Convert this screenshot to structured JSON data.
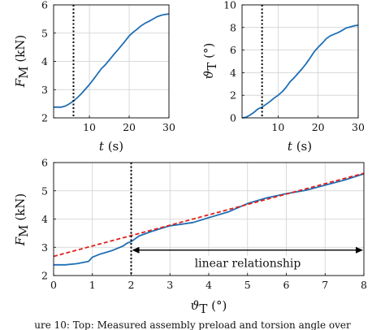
{
  "colors": {
    "series": "#1f6fb5",
    "fit": "#e0201b",
    "grid": "#cfcfcf",
    "axis": "#000000"
  },
  "chart_data": [
    {
      "id": "panel-a",
      "type": "line",
      "xlim": [
        1,
        30
      ],
      "ylim": [
        2,
        6
      ],
      "xticks": [
        10,
        20,
        30
      ],
      "yticks": [
        2,
        3,
        4,
        5,
        6
      ],
      "grid": true,
      "xlabel_var": "t",
      "xlabel_unit": "(s)",
      "ylabel_var": "F",
      "ylabel_sub": "M",
      "ylabel_unit": "(kN)",
      "vline_x": 6,
      "series": [
        {
          "x": [
            1,
            3,
            4,
            5,
            6,
            7,
            8,
            9,
            10,
            11,
            12,
            13,
            14,
            15,
            16,
            17,
            18,
            19,
            20,
            21,
            22,
            23,
            24,
            25,
            26,
            27,
            28,
            29,
            30
          ],
          "y": [
            2.38,
            2.38,
            2.42,
            2.5,
            2.6,
            2.72,
            2.86,
            3.02,
            3.18,
            3.36,
            3.55,
            3.74,
            3.88,
            4.05,
            4.22,
            4.38,
            4.55,
            4.72,
            4.9,
            5.03,
            5.14,
            5.26,
            5.35,
            5.42,
            5.5,
            5.58,
            5.63,
            5.66,
            5.68
          ]
        }
      ]
    },
    {
      "id": "panel-b",
      "type": "line",
      "xlim": [
        1,
        30
      ],
      "ylim": [
        0,
        10
      ],
      "xticks": [
        10,
        20,
        30
      ],
      "yticks": [
        0,
        2,
        4,
        6,
        8,
        10
      ],
      "grid": true,
      "xlabel_var": "t",
      "xlabel_unit": "(s)",
      "ylabel_var": "ϑ",
      "ylabel_sub": "T",
      "ylabel_unit": "(°)",
      "vline_x": 6,
      "series": [
        {
          "x": [
            1,
            2,
            3,
            4,
            5,
            6,
            7,
            8,
            9,
            10,
            11,
            12,
            13,
            14,
            15,
            16,
            17,
            18,
            19,
            20,
            21,
            22,
            23,
            24,
            25,
            26,
            27,
            28,
            29,
            30
          ],
          "y": [
            0,
            0.05,
            0.25,
            0.5,
            0.8,
            0.95,
            1.2,
            1.45,
            1.75,
            2.0,
            2.3,
            2.7,
            3.2,
            3.55,
            3.95,
            4.35,
            4.8,
            5.3,
            5.85,
            6.25,
            6.6,
            7.0,
            7.25,
            7.4,
            7.55,
            7.75,
            7.95,
            8.05,
            8.15,
            8.2
          ]
        }
      ]
    },
    {
      "id": "panel-c",
      "type": "line",
      "xlim": [
        0,
        8
      ],
      "ylim": [
        2,
        6
      ],
      "xticks": [
        0,
        1,
        2,
        3,
        4,
        5,
        6,
        7,
        8
      ],
      "yticks": [
        2,
        3,
        4,
        5,
        6
      ],
      "grid": true,
      "xlabel_var": "ϑ",
      "xlabel_sub": "T",
      "xlabel_unit": "(°)",
      "ylabel_var": "F",
      "ylabel_sub": "M",
      "ylabel_unit": "(kN)",
      "vline_x": 2,
      "annotation": "linear relationship",
      "arrow": [
        2,
        8
      ],
      "arrow_y": 2.9,
      "series": [
        {
          "x": [
            0,
            0.3,
            0.6,
            0.9,
            1.0,
            1.2,
            1.5,
            1.8,
            1.9,
            2.0,
            2.2,
            2.5,
            2.8,
            3.0,
            3.3,
            3.6,
            4.0,
            4.5,
            5.0,
            5.5,
            6.0,
            6.5,
            7.0,
            7.5,
            8.0
          ],
          "y": [
            2.38,
            2.38,
            2.42,
            2.5,
            2.65,
            2.76,
            2.88,
            3.05,
            3.15,
            3.2,
            3.4,
            3.55,
            3.68,
            3.76,
            3.82,
            3.88,
            4.05,
            4.25,
            4.55,
            4.75,
            4.9,
            5.02,
            5.2,
            5.38,
            5.6
          ]
        },
        {
          "style": "dashed",
          "x": [
            0,
            8
          ],
          "y": [
            2.68,
            5.62
          ]
        }
      ]
    }
  ],
  "caption": "ure 10: Top: Measured assembly preload and torsion angle over"
}
